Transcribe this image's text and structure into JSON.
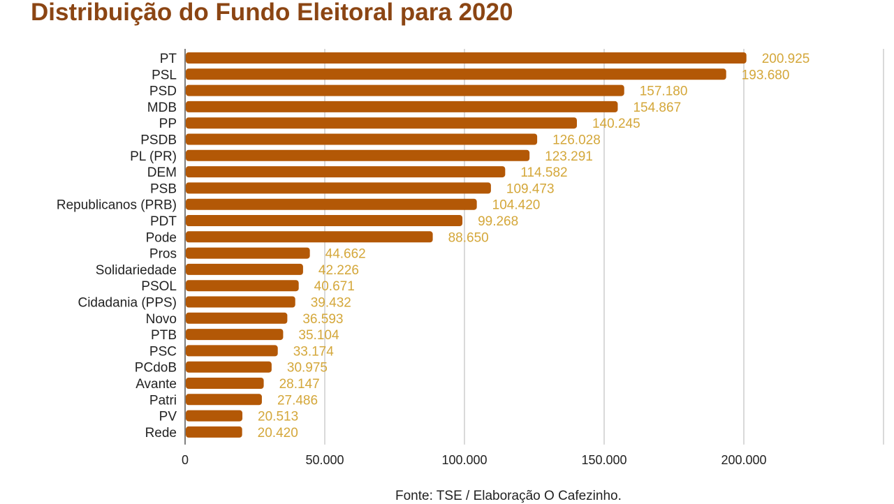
{
  "chart_data": {
    "type": "bar",
    "orientation": "horizontal",
    "title": "Distribuição do Fundo Eleitoral para 2020",
    "source": "Fonte: TSE / Elaboração O Cafezinho.",
    "categories": [
      "PT",
      "PSL",
      "PSD",
      "MDB",
      "PP",
      "PSDB",
      "PL (PR)",
      "DEM",
      "PSB",
      "Republicanos (PRB)",
      "PDT",
      "Pode",
      "Pros",
      "Solidariedade",
      "PSOL",
      "Cidadania (PPS)",
      "Novo",
      "PTB",
      "PSC",
      "PCdoB",
      "Avante",
      "Patri",
      "PV",
      "Rede"
    ],
    "values": [
      200925,
      193680,
      157180,
      154867,
      140245,
      126028,
      123291,
      114582,
      109473,
      104420,
      99268,
      88650,
      44662,
      42226,
      40671,
      39432,
      36593,
      35104,
      33174,
      30975,
      28147,
      27486,
      20513,
      20420
    ],
    "value_labels": [
      "200.925",
      "193.680",
      "157.180",
      "154.867",
      "140.245",
      "126.028",
      "123.291",
      "114.582",
      "109.473",
      "104.420",
      "99.268",
      "88.650",
      "44.662",
      "42.226",
      "40.671",
      "39.432",
      "36.593",
      "35.104",
      "33.174",
      "30.975",
      "28.147",
      "27.486",
      "20.513",
      "20.420"
    ],
    "xlim": [
      0,
      250000
    ],
    "xticks": [
      0,
      50000,
      100000,
      150000,
      200000
    ],
    "xtick_labels": [
      "0",
      "50.000",
      "100.000",
      "150.000",
      "200.000"
    ],
    "grid": "vertical",
    "legend": "none",
    "colors": {
      "bar": "#b35806",
      "value_label": "#d4a73a",
      "grid": "#d9d9d9",
      "title": "#8b4513"
    }
  }
}
